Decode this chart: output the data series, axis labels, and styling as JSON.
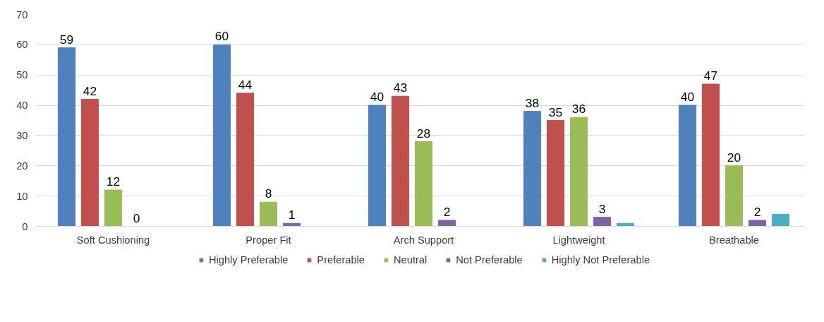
{
  "chart_data": {
    "type": "bar",
    "categories": [
      "Soft Cushioning",
      "Proper Fit",
      "Arch Support",
      "Lightweight",
      "Breathable"
    ],
    "series": [
      {
        "name": "Highly Preferable",
        "color": "#4f81bd",
        "values": [
          59,
          60,
          40,
          38,
          40
        ],
        "value_labels": [
          "59",
          "60",
          "40",
          "38",
          "40"
        ]
      },
      {
        "name": "Preferable",
        "color": "#c0504d",
        "values": [
          42,
          44,
          43,
          35,
          47
        ],
        "value_labels": [
          "42",
          "44",
          "43",
          "35",
          "47"
        ]
      },
      {
        "name": "Neutral",
        "color": "#9bbb59",
        "values": [
          12,
          8,
          28,
          36,
          20
        ],
        "value_labels": [
          "12",
          "8",
          "28",
          "36",
          "20"
        ]
      },
      {
        "name": "Not Preferable",
        "color": "#8064a2",
        "values": [
          0,
          1,
          2,
          3,
          2
        ],
        "value_labels": [
          "0",
          "1",
          "2",
          "3",
          "2"
        ]
      },
      {
        "name": "Highly Not Preferable",
        "color": "#4bacc6",
        "values": [
          0,
          0,
          0,
          1,
          4
        ],
        "value_labels": [
          null,
          null,
          null,
          null,
          null
        ]
      }
    ],
    "ylim": [
      0,
      70
    ],
    "yticks": [
      0,
      10,
      20,
      30,
      40,
      50,
      60,
      70
    ],
    "grid": "y",
    "legend": "bottom"
  }
}
